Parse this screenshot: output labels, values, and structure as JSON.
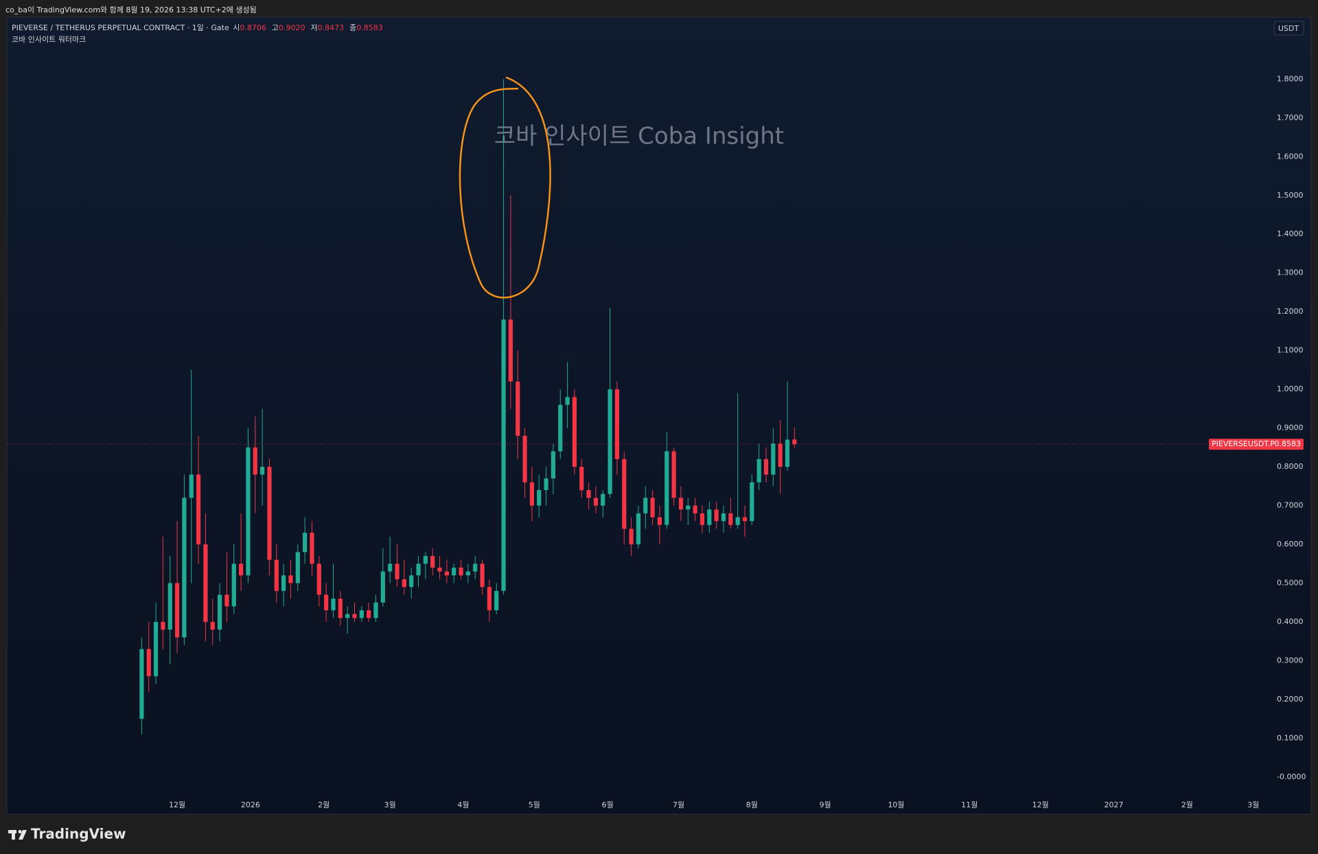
{
  "top_bar": {
    "text": "co_ba이 TradingView.com와 함께 8월 19, 2026 13:38 UTC+2에 생성됨"
  },
  "chart_data": {
    "type": "candlestick",
    "title": "PIEVERSE / TETHERUS PERPETUAL CONTRACT · 1일 · Gate",
    "ohlc_legend": [
      {
        "label": "시",
        "value": "0.8706"
      },
      {
        "label": "고",
        "value": "0.9020"
      },
      {
        "label": "저",
        "value": "0.8473"
      },
      {
        "label": "종",
        "value": "0.8583"
      }
    ],
    "subtitle": "코바 인사이트 워터마크",
    "watermark": "코바 인사이트 Coba Insight",
    "currency": "USDT",
    "up_color": "#22ab94",
    "down_color": "#f23645",
    "grid": false,
    "x": [
      -15,
      -12,
      -9,
      -6,
      -3,
      0,
      3,
      6,
      9,
      12,
      15,
      18,
      21,
      24,
      27,
      30,
      33,
      36,
      39,
      42,
      45,
      48,
      51,
      54,
      57,
      60,
      63,
      66,
      69,
      72,
      75,
      78,
      81,
      84,
      87,
      90,
      93,
      96,
      99,
      102,
      105,
      108,
      111,
      114,
      117,
      120,
      123,
      126,
      129,
      132,
      135,
      138,
      141,
      144,
      147,
      150,
      153,
      156,
      159,
      162,
      165,
      168,
      171,
      174,
      177,
      180,
      183,
      186,
      189,
      192,
      195,
      198,
      201,
      204,
      207,
      210,
      213,
      216,
      219,
      222,
      225,
      228,
      231,
      234,
      237,
      240,
      243,
      246,
      249,
      252,
      255,
      258,
      261
    ],
    "open": [
      0.15,
      0.33,
      0.26,
      0.4,
      0.38,
      0.5,
      0.36,
      0.72,
      0.78,
      0.6,
      0.4,
      0.38,
      0.47,
      0.44,
      0.55,
      0.52,
      0.85,
      0.78,
      0.8,
      0.56,
      0.48,
      0.52,
      0.5,
      0.58,
      0.63,
      0.55,
      0.47,
      0.43,
      0.46,
      0.41,
      0.42,
      0.41,
      0.43,
      0.41,
      0.45,
      0.53,
      0.55,
      0.51,
      0.49,
      0.52,
      0.55,
      0.57,
      0.54,
      0.53,
      0.52,
      0.54,
      0.52,
      0.53,
      0.55,
      0.49,
      0.43,
      0.48,
      1.18,
      1.02,
      0.88,
      0.76,
      0.7,
      0.74,
      0.77,
      0.84,
      0.96,
      0.98,
      0.8,
      0.74,
      0.72,
      0.7,
      0.73,
      1.0,
      0.82,
      0.64,
      0.6,
      0.68,
      0.72,
      0.67,
      0.65,
      0.84,
      0.72,
      0.69,
      0.7,
      0.68,
      0.65,
      0.69,
      0.66,
      0.68,
      0.65,
      0.67,
      0.66,
      0.76,
      0.82,
      0.78,
      0.86,
      0.8,
      0.8706
    ],
    "high": [
      0.36,
      0.4,
      0.45,
      0.62,
      0.57,
      0.66,
      0.78,
      1.05,
      0.88,
      0.68,
      0.46,
      0.5,
      0.58,
      0.6,
      0.68,
      0.9,
      0.93,
      0.95,
      0.82,
      0.6,
      0.55,
      0.56,
      0.6,
      0.67,
      0.66,
      0.57,
      0.5,
      0.55,
      0.48,
      0.44,
      0.45,
      0.44,
      0.45,
      0.47,
      0.59,
      0.62,
      0.6,
      0.56,
      0.54,
      0.57,
      0.58,
      0.59,
      0.57,
      0.56,
      0.55,
      0.56,
      0.55,
      0.57,
      0.56,
      0.51,
      0.5,
      1.8,
      1.5,
      1.1,
      0.9,
      0.8,
      0.78,
      0.8,
      0.86,
      1.0,
      1.07,
      1.0,
      0.82,
      0.76,
      0.75,
      0.74,
      1.21,
      1.02,
      0.84,
      0.67,
      0.7,
      0.75,
      0.74,
      0.7,
      0.89,
      0.85,
      0.75,
      0.72,
      0.72,
      0.7,
      0.71,
      0.71,
      0.7,
      0.72,
      0.99,
      0.7,
      0.78,
      0.86,
      0.85,
      0.9,
      0.92,
      1.02,
      0.902
    ],
    "low": [
      0.11,
      0.22,
      0.24,
      0.33,
      0.29,
      0.32,
      0.34,
      0.5,
      0.55,
      0.35,
      0.34,
      0.35,
      0.4,
      0.42,
      0.48,
      0.5,
      0.68,
      0.7,
      0.52,
      0.45,
      0.44,
      0.46,
      0.48,
      0.55,
      0.52,
      0.44,
      0.4,
      0.41,
      0.39,
      0.37,
      0.4,
      0.4,
      0.4,
      0.4,
      0.44,
      0.5,
      0.49,
      0.47,
      0.46,
      0.49,
      0.51,
      0.52,
      0.51,
      0.5,
      0.5,
      0.51,
      0.5,
      0.51,
      0.47,
      0.4,
      0.42,
      0.47,
      0.95,
      0.82,
      0.72,
      0.66,
      0.67,
      0.7,
      0.73,
      0.82,
      0.9,
      0.78,
      0.72,
      0.69,
      0.68,
      0.67,
      0.72,
      0.78,
      0.6,
      0.57,
      0.59,
      0.64,
      0.65,
      0.6,
      0.64,
      0.7,
      0.66,
      0.65,
      0.66,
      0.63,
      0.63,
      0.64,
      0.63,
      0.64,
      0.64,
      0.62,
      0.65,
      0.74,
      0.76,
      0.75,
      0.73,
      0.79,
      0.8473
    ],
    "close": [
      0.33,
      0.26,
      0.4,
      0.38,
      0.5,
      0.36,
      0.72,
      0.78,
      0.6,
      0.4,
      0.38,
      0.47,
      0.44,
      0.55,
      0.52,
      0.85,
      0.78,
      0.8,
      0.56,
      0.48,
      0.52,
      0.5,
      0.58,
      0.63,
      0.55,
      0.47,
      0.43,
      0.46,
      0.41,
      0.42,
      0.41,
      0.43,
      0.41,
      0.45,
      0.53,
      0.55,
      0.51,
      0.49,
      0.52,
      0.55,
      0.57,
      0.54,
      0.53,
      0.52,
      0.54,
      0.52,
      0.53,
      0.55,
      0.49,
      0.43,
      0.48,
      1.18,
      1.02,
      0.88,
      0.76,
      0.7,
      0.74,
      0.77,
      0.84,
      0.96,
      0.98,
      0.8,
      0.74,
      0.72,
      0.7,
      0.73,
      1.0,
      0.82,
      0.64,
      0.6,
      0.68,
      0.72,
      0.67,
      0.65,
      0.84,
      0.72,
      0.69,
      0.7,
      0.68,
      0.65,
      0.69,
      0.66,
      0.68,
      0.65,
      0.67,
      0.66,
      0.76,
      0.82,
      0.78,
      0.86,
      0.8,
      0.87,
      0.8583
    ],
    "xlim": [
      -72,
      460
    ],
    "xticks": [
      {
        "value": 0,
        "label": "12월"
      },
      {
        "value": 31,
        "label": "2026"
      },
      {
        "value": 62,
        "label": "2월"
      },
      {
        "value": 90,
        "label": "3월"
      },
      {
        "value": 121,
        "label": "4월"
      },
      {
        "value": 151,
        "label": "5월"
      },
      {
        "value": 182,
        "label": "6월"
      },
      {
        "value": 212,
        "label": "7월"
      },
      {
        "value": 243,
        "label": "8월"
      },
      {
        "value": 274,
        "label": "9월"
      },
      {
        "value": 304,
        "label": "10월"
      },
      {
        "value": 335,
        "label": "11월"
      },
      {
        "value": 365,
        "label": "12월"
      },
      {
        "value": 396,
        "label": "2027"
      },
      {
        "value": 427,
        "label": "2월"
      },
      {
        "value": 455,
        "label": "3월"
      }
    ],
    "ylim": [
      -0.05,
      1.96
    ],
    "yticks": [
      {
        "value": 0,
        "label": "-0.0000"
      },
      {
        "value": 0.1,
        "label": "0.1000"
      },
      {
        "value": 0.2,
        "label": "0.2000"
      },
      {
        "value": 0.3,
        "label": "0.3000"
      },
      {
        "value": 0.4,
        "label": "0.4000"
      },
      {
        "value": 0.5,
        "label": "0.5000"
      },
      {
        "value": 0.6,
        "label": "0.6000"
      },
      {
        "value": 0.7,
        "label": "0.7000"
      },
      {
        "value": 0.8,
        "label": "0.8000"
      },
      {
        "value": 0.9,
        "label": "0.9000"
      },
      {
        "value": 1.0,
        "label": "1.0000"
      },
      {
        "value": 1.1,
        "label": "1.1000"
      },
      {
        "value": 1.2,
        "label": "1.2000"
      },
      {
        "value": 1.3,
        "label": "1.3000"
      },
      {
        "value": 1.4,
        "label": "1.4000"
      },
      {
        "value": 1.5,
        "label": "1.5000"
      },
      {
        "value": 1.6,
        "label": "1.6000"
      },
      {
        "value": 1.7,
        "label": "1.7000"
      },
      {
        "value": 1.8,
        "label": "1.8000"
      }
    ],
    "last_price": {
      "label": "PIEVERSEUSDT.P",
      "value": 0.8583
    }
  },
  "footer": {
    "brand": "TradingView"
  }
}
